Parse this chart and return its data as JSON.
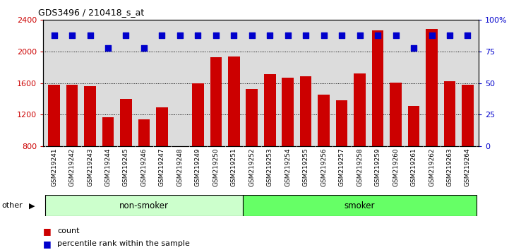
{
  "title": "GDS3496 / 210418_s_at",
  "samples": [
    "GSM219241",
    "GSM219242",
    "GSM219243",
    "GSM219244",
    "GSM219245",
    "GSM219246",
    "GSM219247",
    "GSM219248",
    "GSM219249",
    "GSM219250",
    "GSM219251",
    "GSM219252",
    "GSM219253",
    "GSM219254",
    "GSM219255",
    "GSM219256",
    "GSM219257",
    "GSM219258",
    "GSM219259",
    "GSM219260",
    "GSM219261",
    "GSM219262",
    "GSM219263",
    "GSM219264"
  ],
  "counts": [
    1575,
    1575,
    1560,
    1165,
    1400,
    1145,
    1295,
    800,
    1595,
    1930,
    1940,
    1530,
    1710,
    1670,
    1690,
    1455,
    1380,
    1720,
    2270,
    1610,
    1310,
    2290,
    1620,
    1580
  ],
  "percentiles": [
    88,
    88,
    88,
    78,
    88,
    78,
    88,
    88,
    88,
    88,
    88,
    88,
    88,
    88,
    88,
    88,
    88,
    88,
    88,
    88,
    78,
    88,
    88,
    88
  ],
  "groups": [
    "non-smoker",
    "non-smoker",
    "non-smoker",
    "non-smoker",
    "non-smoker",
    "non-smoker",
    "non-smoker",
    "non-smoker",
    "non-smoker",
    "non-smoker",
    "non-smoker",
    "smoker",
    "smoker",
    "smoker",
    "smoker",
    "smoker",
    "smoker",
    "smoker",
    "smoker",
    "smoker",
    "smoker",
    "smoker",
    "smoker",
    "smoker"
  ],
  "ylim_left": [
    800,
    2400
  ],
  "ylim_right": [
    0,
    100
  ],
  "yticks_left": [
    800,
    1200,
    1600,
    2000,
    2400
  ],
  "yticks_right": [
    0,
    25,
    50,
    75,
    100
  ],
  "bar_color": "#CC0000",
  "dot_color": "#0000CC",
  "nonsmoker_color": "#CCFFCC",
  "smoker_color": "#66FF66",
  "tick_color_left": "#CC0000",
  "tick_color_right": "#0000CC",
  "group_label_nonsmoker": "non-smoker",
  "group_label_smoker": "smoker",
  "other_label": "other",
  "legend_count": "count",
  "legend_percentile": "percentile rank within the sample",
  "bar_width": 0.65,
  "dot_size": 30,
  "plot_bg": "#DCDCDC",
  "nonsmoker_count": 11,
  "smoker_count": 13
}
